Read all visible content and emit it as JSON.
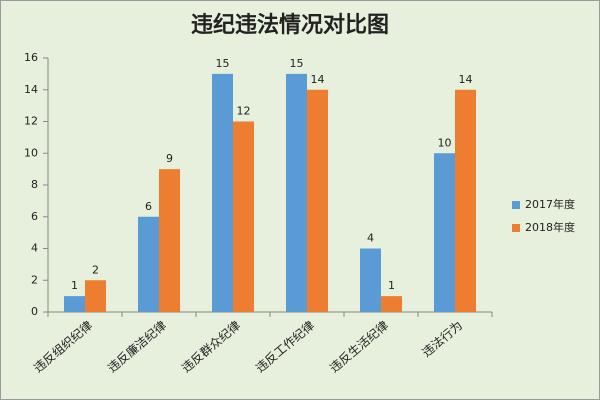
{
  "chart_data": {
    "type": "bar",
    "title": "违纪违法情况对比图",
    "categories": [
      "违反组织纪律",
      "违反廉洁纪律",
      "违反群众纪律",
      "违反工作纪律",
      "违反生活纪律",
      "违法行为"
    ],
    "series": [
      {
        "name": "2017年度",
        "color": "#5b9bd5",
        "values": [
          1,
          6,
          15,
          15,
          4,
          10
        ]
      },
      {
        "name": "2018年度",
        "color": "#ed7d31",
        "values": [
          2,
          9,
          12,
          14,
          1,
          14
        ]
      }
    ],
    "ylim": [
      0,
      16
    ],
    "yticks": [
      0,
      2,
      4,
      6,
      8,
      10,
      12,
      14,
      16
    ],
    "grid": false,
    "legend": "right"
  }
}
